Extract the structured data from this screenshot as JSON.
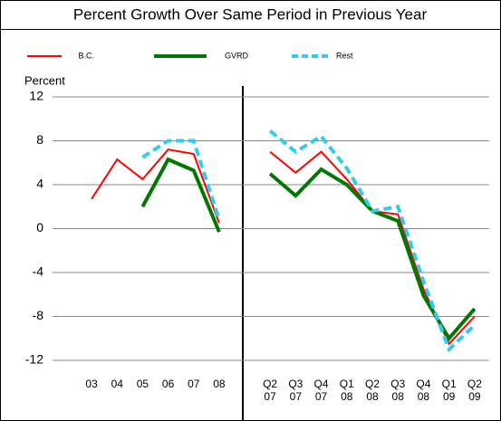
{
  "chart_data": {
    "type": "line",
    "title": "Percent Growth Over Same Period in Previous Year",
    "ylabel": "Percent",
    "ylim": [
      -12,
      12
    ],
    "yticks": [
      -12,
      -8,
      -4,
      0,
      4,
      8,
      12
    ],
    "grid": true,
    "series": [
      {
        "name": "B.C.",
        "color": "#ff0000",
        "width": 2,
        "dash": false
      },
      {
        "name": "GVRD",
        "color": "#007700",
        "width": 4,
        "dash": false
      },
      {
        "name": "Rest",
        "color": "#33ccee",
        "width": 4,
        "dash": true
      }
    ],
    "panels": [
      {
        "categories": [
          "03",
          "04",
          "05",
          "06",
          "07",
          "08"
        ],
        "values": [
          [
            2.7,
            6.3,
            4.5,
            7.2,
            6.8,
            0.5
          ],
          [
            null,
            null,
            2.0,
            6.3,
            5.3,
            -0.3
          ],
          [
            null,
            null,
            6.5,
            8.0,
            8.0,
            0.8
          ]
        ]
      },
      {
        "categories": [
          "Q2 07",
          "Q3 07",
          "Q4 07",
          "Q1 08",
          "Q2 08",
          "Q3 08",
          "Q4 08",
          "Q1 09",
          "Q2 09"
        ],
        "values": [
          [
            7.0,
            5.1,
            7.0,
            4.5,
            1.6,
            1.3,
            -5.5,
            -10.5,
            -8.0
          ],
          [
            5.0,
            3.0,
            5.4,
            4.0,
            1.6,
            0.7,
            -6.1,
            -10.0,
            -7.3
          ],
          [
            8.9,
            7.0,
            8.4,
            5.5,
            1.6,
            2.0,
            -4.8,
            -11.0,
            -8.8
          ]
        ]
      }
    ]
  }
}
